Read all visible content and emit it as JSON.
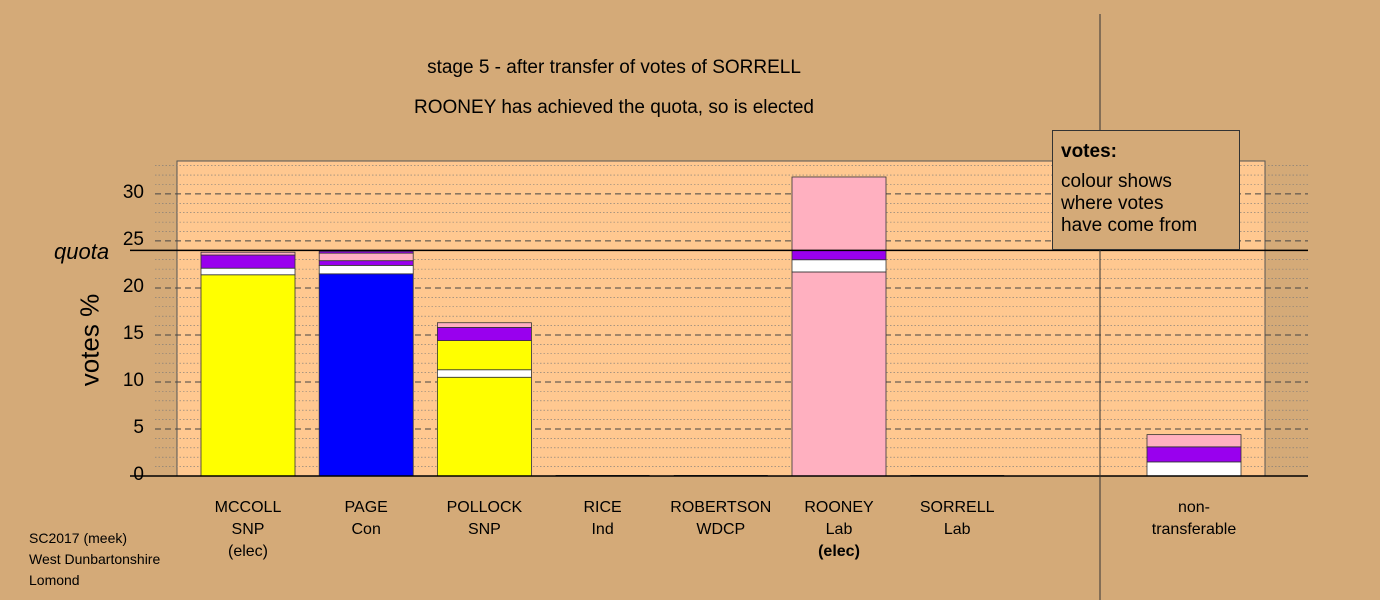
{
  "chart_data": {
    "type": "bar",
    "stacked": true,
    "title": "stage 5 - after transfer of votes of SORRELL",
    "subtitle": "ROONEY has achieved the quota, so is elected",
    "ylabel": "votes %",
    "ylim": [
      0,
      33.5
    ],
    "yticks": [
      0,
      5,
      10,
      15,
      20,
      25,
      30
    ],
    "quota": 24.0,
    "quota_label": "quota",
    "grid": true,
    "legend": {
      "title": "votes:",
      "lines": [
        "colour shows",
        "where votes",
        "have come from"
      ],
      "placement": "top-right"
    },
    "candidates": [
      {
        "name": "MCCOLL",
        "party": "SNP",
        "status": "(elec)",
        "status_bold": false,
        "segments": [
          {
            "color": "#ffff00",
            "value": 21.4
          },
          {
            "color": "#ffffff",
            "value": 0.7
          },
          {
            "color": "#9900ee",
            "value": 1.4
          },
          {
            "color": "#ffb0c0",
            "value": 0.3
          }
        ]
      },
      {
        "name": "PAGE",
        "party": "Con",
        "status": "",
        "status_bold": false,
        "segments": [
          {
            "color": "#0000ff",
            "value": 21.5
          },
          {
            "color": "#ffffff",
            "value": 0.9
          },
          {
            "color": "#9900ee",
            "value": 0.5
          },
          {
            "color": "#ffb0c0",
            "value": 0.8
          },
          {
            "color": "#9900ee",
            "value": 0.2
          }
        ]
      },
      {
        "name": "POLLOCK",
        "party": "SNP",
        "status": "",
        "status_bold": false,
        "segments": [
          {
            "color": "#ffff00",
            "value": 10.5
          },
          {
            "color": "#ffffff",
            "value": 0.8
          },
          {
            "color": "#ffff00",
            "value": 3.1
          },
          {
            "color": "#9900ee",
            "value": 1.4
          },
          {
            "color": "#ffb0c0",
            "value": 0.5
          }
        ]
      },
      {
        "name": "RICE",
        "party": "Ind",
        "status": "",
        "status_bold": false,
        "segments": []
      },
      {
        "name": "ROBERTSON",
        "party": "WDCP",
        "status": "",
        "status_bold": false,
        "segments": []
      },
      {
        "name": "ROONEY",
        "party": "Lab",
        "status": "(elec)",
        "status_bold": true,
        "segments": [
          {
            "color": "#ffb0c0",
            "value": 21.7
          },
          {
            "color": "#ffffff",
            "value": 1.3
          },
          {
            "color": "#9900ee",
            "value": 1.0
          },
          {
            "color": "#ffb0c0",
            "value": 7.8
          }
        ]
      },
      {
        "name": "SORRELL",
        "party": "Lab",
        "status": "",
        "status_bold": false,
        "segments": []
      }
    ],
    "nontransferable": {
      "label_line1": "non-",
      "label_line2": "transferable",
      "segments": [
        {
          "color": "#ffffff",
          "value": 1.5
        },
        {
          "color": "#9900ee",
          "value": 1.6
        },
        {
          "color": "#ffb0c0",
          "value": 1.3
        }
      ]
    }
  },
  "footer": {
    "line1": "SC2017 (meek)",
    "line2": "West Dunbartonshire",
    "line3": "Lomond"
  }
}
